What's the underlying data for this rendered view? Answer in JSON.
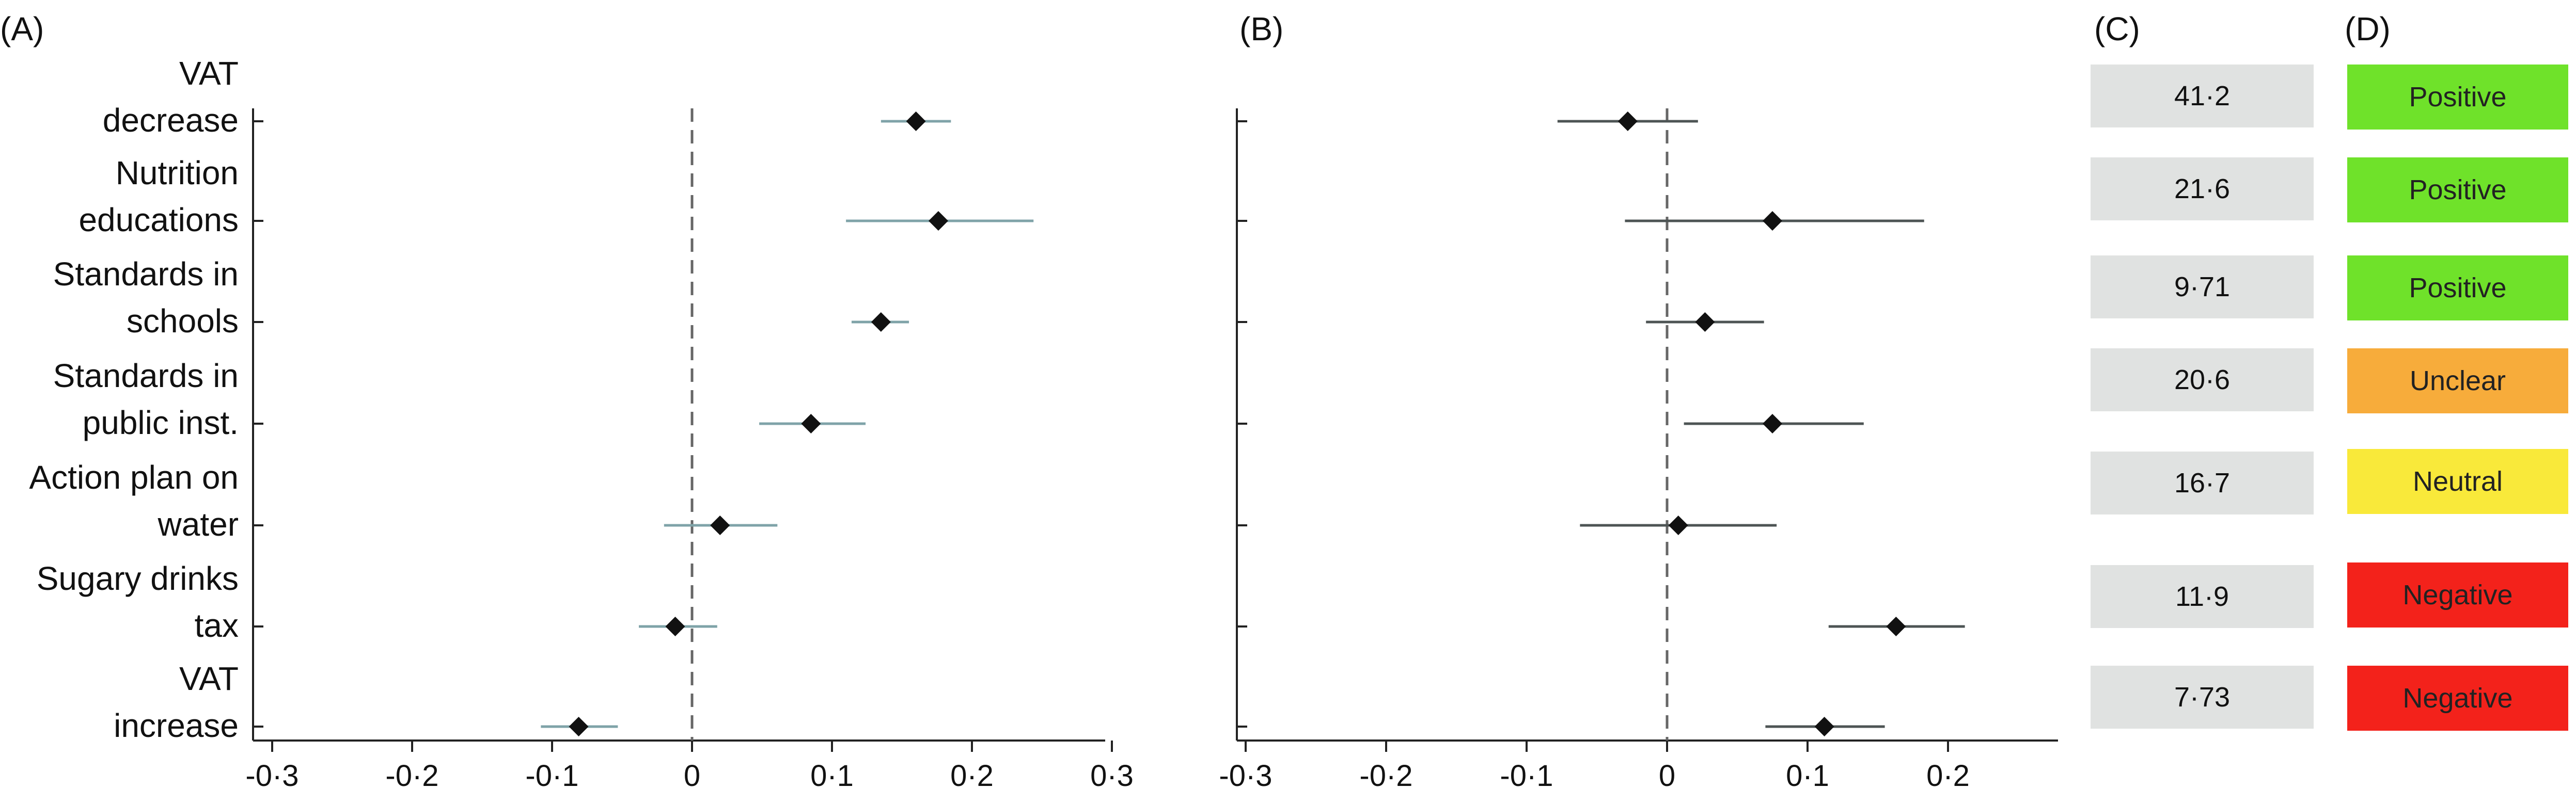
{
  "panels": {
    "a_label": "(A)",
    "b_label": "(B)",
    "c_label": "(C)",
    "d_label": "(D)"
  },
  "category_labels": [
    [
      "VAT",
      "decrease"
    ],
    [
      "Nutrition",
      "educations"
    ],
    [
      "Standards in",
      "schools"
    ],
    [
      "Standards in",
      "public inst."
    ],
    [
      "Action plan on",
      "water"
    ],
    [
      "Sugary drinks",
      "tax"
    ],
    [
      "VAT",
      "increase"
    ]
  ],
  "chart_data": [
    {
      "type": "scatter",
      "panel": "A",
      "title": "",
      "xlabel": "",
      "ylabel": "",
      "xlim": [
        -0.32,
        0.31
      ],
      "x_ticks": [
        -0.3,
        -0.2,
        -0.1,
        0,
        0.1,
        0.2,
        0.3
      ],
      "x_tick_labels": [
        "-0·3",
        "-0·2",
        "-0·1",
        "0",
        "0·1",
        "0·2",
        "0·3"
      ],
      "reference_line_x": 0,
      "grid": false,
      "rows": 7,
      "points": [
        {
          "row": 0,
          "estimate": 0.16,
          "lower": 0.135,
          "upper": 0.185
        },
        {
          "row": 1,
          "estimate": 0.176,
          "lower": 0.11,
          "upper": 0.244
        },
        {
          "row": 2,
          "estimate": 0.135,
          "lower": 0.114,
          "upper": 0.155
        },
        {
          "row": 3,
          "estimate": 0.085,
          "lower": 0.048,
          "upper": 0.124
        },
        {
          "row": 4,
          "estimate": 0.02,
          "lower": -0.02,
          "upper": 0.061
        },
        {
          "row": 5,
          "estimate": -0.012,
          "lower": -0.038,
          "upper": 0.018
        },
        {
          "row": 6,
          "estimate": -0.081,
          "lower": -0.108,
          "upper": -0.053
        }
      ],
      "ci_color": "#7fa3a8",
      "marker_color": "#111111"
    },
    {
      "type": "scatter",
      "panel": "B",
      "title": "",
      "xlabel": "",
      "ylabel": "",
      "xlim": [
        -0.32,
        0.28
      ],
      "x_ticks": [
        -0.3,
        -0.2,
        -0.1,
        0,
        0.1,
        0.2
      ],
      "x_tick_labels": [
        "-0·3",
        "-0·2",
        "-0·1",
        "0",
        "0·1",
        "0·2"
      ],
      "reference_line_x": 0,
      "grid": false,
      "rows": 7,
      "points": [
        {
          "row": 0,
          "estimate": -0.028,
          "lower": -0.078,
          "upper": 0.022
        },
        {
          "row": 1,
          "estimate": 0.075,
          "lower": -0.03,
          "upper": 0.183
        },
        {
          "row": 2,
          "estimate": 0.027,
          "lower": -0.015,
          "upper": 0.069
        },
        {
          "row": 3,
          "estimate": 0.075,
          "lower": 0.012,
          "upper": 0.14
        },
        {
          "row": 4,
          "estimate": 0.008,
          "lower": -0.062,
          "upper": 0.078
        },
        {
          "row": 5,
          "estimate": 0.163,
          "lower": 0.115,
          "upper": 0.212
        },
        {
          "row": 6,
          "estimate": 0.112,
          "lower": 0.07,
          "upper": 0.155
        }
      ],
      "ci_color": "#4d5454",
      "marker_color": "#111111"
    }
  ],
  "table_c": [
    {
      "value": "41·2"
    },
    {
      "value": "21·6"
    },
    {
      "value": "9·71"
    },
    {
      "value": "20·6"
    },
    {
      "value": "16·7"
    },
    {
      "value": "11·9"
    },
    {
      "value": "7·73"
    }
  ],
  "table_d": [
    {
      "label": "Positive",
      "color": "#6fe22a"
    },
    {
      "label": "Positive",
      "color": "#6fe22a"
    },
    {
      "label": "Positive",
      "color": "#6fe22a"
    },
    {
      "label": "Unclear",
      "color": "#f7ac3b"
    },
    {
      "label": "Neutral",
      "color": "#f9e93a"
    },
    {
      "label": "Negative",
      "color": "#f3221b"
    },
    {
      "label": "Negative",
      "color": "#f3221b"
    }
  ]
}
